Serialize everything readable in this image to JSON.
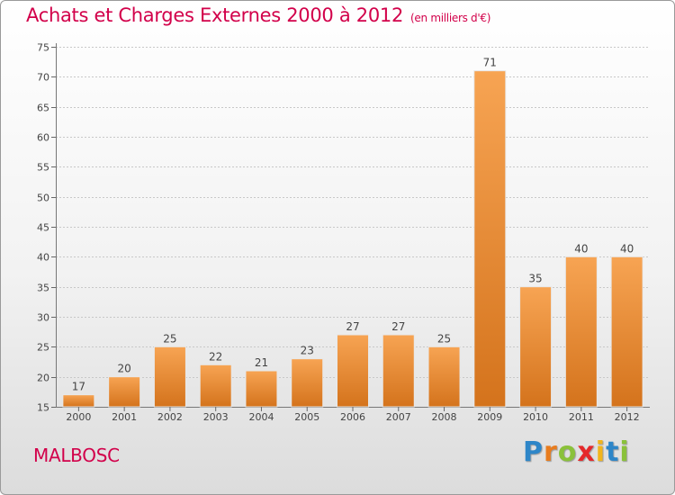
{
  "title": "Achats et Charges Externes 2000 à 2012",
  "unit": "(en milliers d'€)",
  "city": "MALBOSC",
  "logo": {
    "letters": [
      "P",
      "r",
      "o",
      "x",
      "i",
      "t",
      "i"
    ],
    "colors": [
      "#2e86c8",
      "#e87c1e",
      "#8ac13a",
      "#e5282a",
      "#f2b51c",
      "#2e86c8",
      "#8ac13a"
    ]
  },
  "colors": {
    "accent": "#d2004a",
    "bar_light": "#f7a453",
    "bar_dark": "#d4731c"
  },
  "chart_data": {
    "type": "bar",
    "categories": [
      "2000",
      "2001",
      "2002",
      "2003",
      "2004",
      "2005",
      "2006",
      "2007",
      "2008",
      "2009",
      "2010",
      "2011",
      "2012"
    ],
    "values": [
      17,
      20,
      25,
      22,
      21,
      23,
      27,
      27,
      25,
      71,
      35,
      40,
      40
    ],
    "ylim": [
      15,
      75
    ],
    "yticks": [
      15,
      20,
      25,
      30,
      35,
      40,
      45,
      50,
      55,
      60,
      65,
      70,
      75
    ],
    "grid": true
  }
}
